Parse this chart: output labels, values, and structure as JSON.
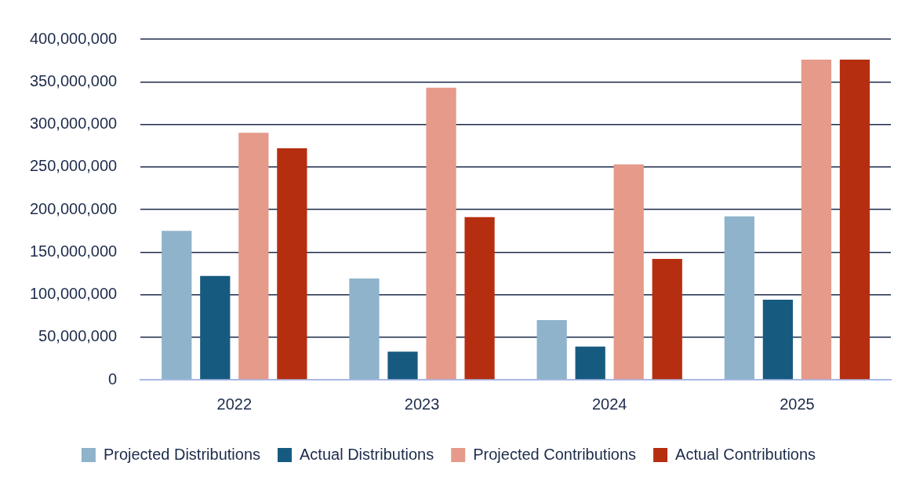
{
  "chart_data": {
    "type": "bar",
    "categories": [
      "2022",
      "2023",
      "2024",
      "2025"
    ],
    "series": [
      {
        "name": "Projected Distributions",
        "color": "#8fb3cb",
        "values": [
          175000000,
          119000000,
          70000000,
          192000000
        ]
      },
      {
        "name": "Actual Distributions",
        "color": "#175a80",
        "values": [
          122000000,
          33000000,
          39000000,
          94000000
        ]
      },
      {
        "name": "Projected Contributions",
        "color": "#e59a8a",
        "values": [
          290000000,
          343000000,
          253000000,
          376000000
        ]
      },
      {
        "name": "Actual Contributions",
        "color": "#b52e10",
        "values": [
          272000000,
          191000000,
          142000000,
          376000000
        ]
      }
    ],
    "ylim": [
      0,
      400000000
    ],
    "yticks": [
      {
        "value": 0,
        "label": "0"
      },
      {
        "value": 50000000,
        "label": "50,000,000"
      },
      {
        "value": 100000000,
        "label": "100,000,000"
      },
      {
        "value": 150000000,
        "label": "150,000,000"
      },
      {
        "value": 200000000,
        "label": "200,000,000"
      },
      {
        "value": 250000000,
        "label": "250,000,000"
      },
      {
        "value": 300000000,
        "label": "300,000,000"
      },
      {
        "value": 350000000,
        "label": "350,000,000"
      },
      {
        "value": 400000000,
        "label": "400,000,000"
      }
    ],
    "grid": "y",
    "legend": "bottom"
  }
}
